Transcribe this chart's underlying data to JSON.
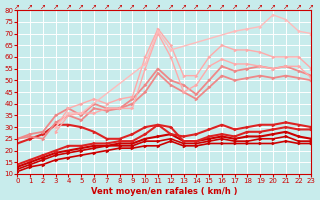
{
  "title": "",
  "xlabel": "Vent moyen/en rafales ( km/h )",
  "ylabel": "",
  "bg_color": "#c8ecec",
  "grid_color": "#ffffff",
  "xlim": [
    0,
    23
  ],
  "ylim": [
    10,
    80
  ],
  "yticks": [
    10,
    15,
    20,
    25,
    30,
    35,
    40,
    45,
    50,
    55,
    60,
    65,
    70,
    75,
    80
  ],
  "xticks": [
    0,
    1,
    2,
    3,
    4,
    5,
    6,
    7,
    8,
    9,
    10,
    11,
    12,
    13,
    14,
    15,
    16,
    17,
    18,
    19,
    20,
    21,
    22,
    23
  ],
  "lines": [
    {
      "x": [
        0,
        1,
        2,
        3,
        4,
        5,
        6,
        7,
        8,
        9,
        10,
        11,
        12,
        13,
        14,
        15,
        16,
        17,
        18,
        19,
        20,
        21,
        22,
        23
      ],
      "y": [
        11,
        13,
        14,
        16,
        17,
        18,
        19,
        20,
        21,
        21,
        22,
        22,
        24,
        22,
        22,
        23,
        23,
        23,
        23,
        23,
        23,
        24,
        23,
        23
      ],
      "color": "#cc0000",
      "lw": 1.2,
      "marker": ">"
    },
    {
      "x": [
        0,
        1,
        2,
        3,
        4,
        5,
        6,
        7,
        8,
        9,
        10,
        11,
        12,
        13,
        14,
        15,
        16,
        17,
        18,
        19,
        20,
        21,
        22,
        23
      ],
      "y": [
        12,
        14,
        16,
        18,
        19,
        20,
        21,
        22,
        22,
        22,
        24,
        24,
        25,
        23,
        23,
        24,
        25,
        24,
        24,
        25,
        25,
        26,
        24,
        24
      ],
      "color": "#cc0000",
      "lw": 1.2,
      "marker": ">"
    },
    {
      "x": [
        0,
        1,
        2,
        3,
        4,
        5,
        6,
        7,
        8,
        9,
        10,
        11,
        12,
        13,
        14,
        15,
        16,
        17,
        18,
        19,
        20,
        21,
        22,
        23
      ],
      "y": [
        13,
        15,
        17,
        19,
        20,
        21,
        22,
        22,
        23,
        23,
        25,
        26,
        27,
        24,
        24,
        25,
        26,
        25,
        26,
        26,
        27,
        28,
        26,
        25
      ],
      "color": "#cc0000",
      "lw": 1.5,
      "marker": ">"
    },
    {
      "x": [
        0,
        1,
        2,
        3,
        4,
        5,
        6,
        7,
        8,
        9,
        10,
        11,
        12,
        13,
        14,
        15,
        16,
        17,
        18,
        19,
        20,
        21,
        22,
        23
      ],
      "y": [
        14,
        16,
        18,
        20,
        22,
        22,
        23,
        23,
        24,
        24,
        27,
        31,
        30,
        24,
        24,
        26,
        27,
        26,
        28,
        28,
        29,
        30,
        29,
        29
      ],
      "color": "#dd2222",
      "lw": 1.5,
      "marker": ">"
    },
    {
      "x": [
        0,
        1,
        2,
        3,
        4,
        5,
        6,
        7,
        8,
        9,
        10,
        11,
        12,
        13,
        14,
        15,
        16,
        17,
        18,
        19,
        20,
        21,
        22,
        23
      ],
      "y": [
        23,
        25,
        27,
        31,
        31,
        30,
        28,
        25,
        25,
        27,
        30,
        31,
        27,
        26,
        27,
        29,
        31,
        29,
        30,
        31,
        31,
        32,
        31,
        30
      ],
      "color": "#dd2222",
      "lw": 1.5,
      "marker": ">"
    },
    {
      "x": [
        0,
        1,
        2,
        3,
        4,
        5,
        6,
        7,
        8,
        9,
        10,
        11,
        12,
        13,
        14,
        15,
        16,
        17,
        18,
        19,
        20,
        21,
        22,
        23
      ],
      "y": [
        25,
        26,
        25,
        32,
        35,
        33,
        38,
        37,
        38,
        40,
        45,
        53,
        48,
        45,
        42,
        47,
        52,
        50,
        51,
        52,
        51,
        52,
        51,
        50
      ],
      "color": "#ee8888",
      "lw": 1.3,
      "marker": ">"
    },
    {
      "x": [
        0,
        1,
        2,
        3,
        4,
        5,
        6,
        7,
        8,
        9,
        10,
        11,
        12,
        13,
        14,
        15,
        16,
        17,
        18,
        19,
        20,
        21,
        22,
        23
      ],
      "y": [
        25,
        27,
        28,
        35,
        38,
        35,
        40,
        38,
        38,
        42,
        48,
        55,
        50,
        48,
        44,
        50,
        56,
        54,
        55,
        56,
        55,
        56,
        54,
        52
      ],
      "color": "#ee8888",
      "lw": 1.3,
      "marker": ">"
    },
    {
      "x": [
        3,
        4,
        5,
        6,
        7,
        8,
        9,
        10,
        11,
        12,
        13,
        14,
        15,
        16,
        17,
        18,
        19,
        20,
        21,
        22,
        23
      ],
      "y": [
        28,
        35,
        36,
        36,
        38,
        38,
        38,
        55,
        70,
        60,
        45,
        48,
        56,
        59,
        57,
        57,
        56,
        55,
        56,
        56,
        51
      ],
      "color": "#ffaaaa",
      "lw": 1.0,
      "marker": ">"
    },
    {
      "x": [
        3,
        4,
        5,
        6,
        7,
        8,
        9,
        10,
        11,
        12,
        13,
        14,
        15,
        16,
        17,
        18,
        19,
        20,
        21,
        22,
        23
      ],
      "y": [
        30,
        38,
        40,
        42,
        40,
        42,
        43,
        60,
        72,
        65,
        52,
        52,
        60,
        65,
        63,
        63,
        62,
        60,
        60,
        60,
        55
      ],
      "color": "#ffaaaa",
      "lw": 1.0,
      "marker": ">"
    },
    {
      "x": [
        3,
        4,
        5,
        10,
        11,
        12,
        17,
        18,
        19,
        20,
        21,
        22,
        23
      ],
      "y": [
        30,
        36,
        36,
        57,
        71,
        63,
        71,
        72,
        73,
        78,
        76,
        71,
        70
      ],
      "color": "#ffbbbb",
      "lw": 1.0,
      "marker": ">"
    }
  ]
}
